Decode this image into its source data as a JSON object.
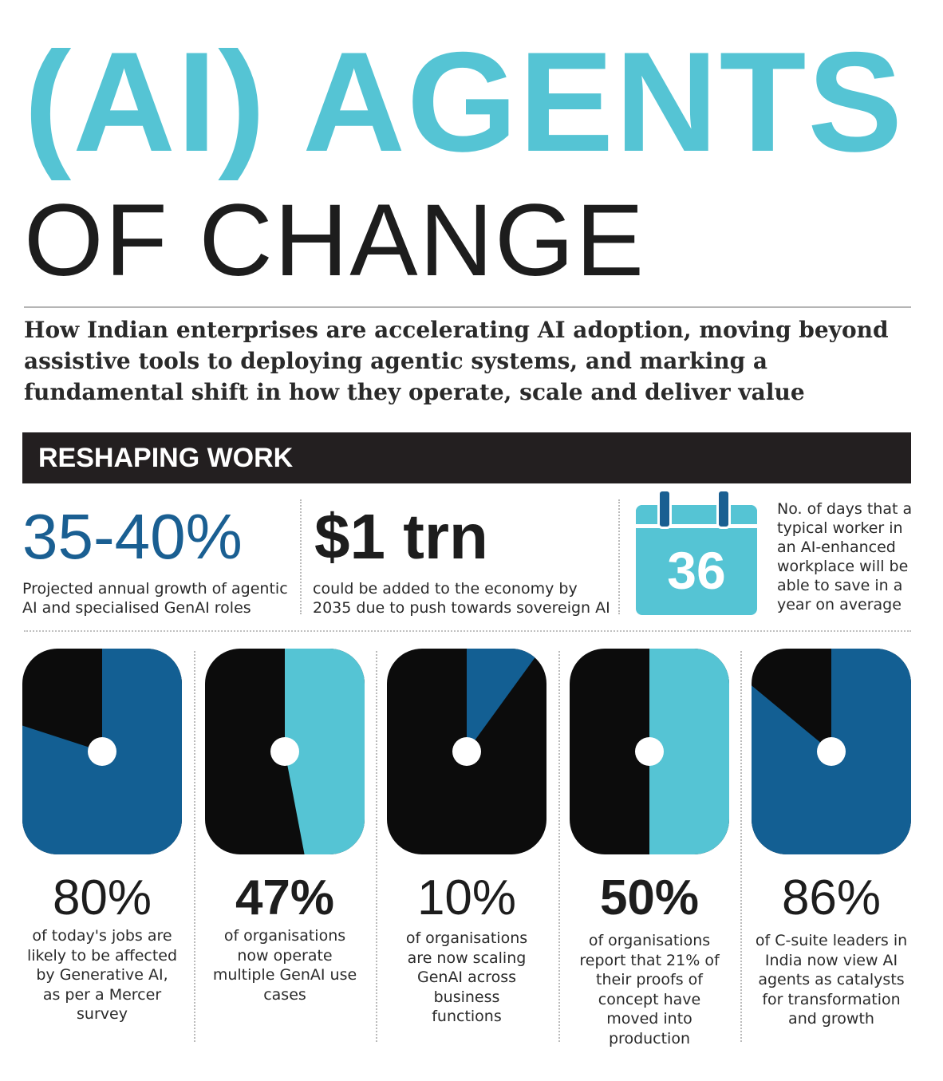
{
  "header": {
    "title_main": "(AI) AGENTS",
    "title_sub": "OF CHANGE",
    "intro": "How Indian enterprises are accelerating AI adoption, moving beyond assistive tools to deploying agentic systems, and marking a fundamental shift in how they operate, scale and deliver value"
  },
  "section": {
    "title": "RESHAPING WORK"
  },
  "stats": {
    "growth": {
      "value": "35-40%",
      "caption": "Projected annual growth of agentic AI and specialised GenAI roles"
    },
    "economy": {
      "value": "$1 trn",
      "caption": "could be added to the economy by 2035 due to push towards sovereign AI"
    },
    "days": {
      "value": "36",
      "caption": "No. of days that a typical worker in an AI-enhanced workplace will be able to save in a year on average"
    }
  },
  "colors": {
    "teal": "#55c4d4",
    "blue": "#135f93",
    "black": "#0c0c0c"
  },
  "chart_data": [
    {
      "type": "pie",
      "value_pct": 80,
      "label": "80%",
      "caption": "of today's jobs are likely to be affected by Generative AI, as per a Mercer survey",
      "highlight_color": "#135f93"
    },
    {
      "type": "pie",
      "value_pct": 47,
      "label": "47%",
      "caption": "of organisations now operate multiple GenAI use cases",
      "highlight_color": "#55c4d4"
    },
    {
      "type": "pie",
      "value_pct": 10,
      "label": "10%",
      "caption": "of organisations are now scaling GenAI across business functions",
      "highlight_color": "#135f93"
    },
    {
      "type": "pie",
      "value_pct": 50,
      "label": "50%",
      "caption": "of organisations report that 21% of their proofs of concept have moved into production",
      "highlight_color": "#55c4d4"
    },
    {
      "type": "pie",
      "value_pct": 86,
      "label": "86%",
      "caption": "of C-suite leaders in India now view AI agents as catalysts for transformation and growth",
      "highlight_color": "#135f93"
    }
  ]
}
